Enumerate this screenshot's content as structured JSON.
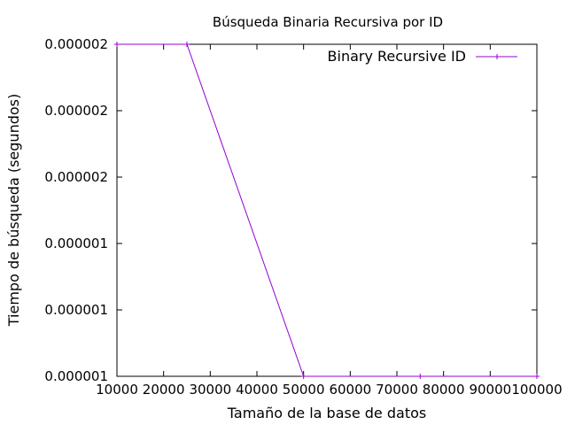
{
  "chart_data": {
    "type": "line",
    "title": "Búsqueda Binaria Recursiva por ID",
    "xlabel": "Tamaño de la base de datos",
    "ylabel": "Tiempo de búsqueda (segundos)",
    "xlim": [
      10000,
      100000
    ],
    "x_ticks": [
      10000,
      20000,
      30000,
      40000,
      50000,
      60000,
      70000,
      80000,
      90000,
      100000
    ],
    "x_tick_labels": [
      "10000",
      "20000",
      "30000",
      "40000",
      "50000",
      "60000",
      "70000",
      "80000",
      "90000",
      "100000"
    ],
    "ylim": [
      1e-06,
      2e-06
    ],
    "y_ticks": [
      1e-06,
      1.2e-06,
      1.4e-06,
      1.6e-06,
      1.8e-06,
      2e-06
    ],
    "y_tick_labels": [
      "0.000001",
      "0.000001",
      "0.000001",
      "0.000002",
      "0.000002",
      "0.000002"
    ],
    "grid": false,
    "legend": "top-right",
    "series": [
      {
        "name": "Binary Recursive ID",
        "color": "#9400d3",
        "marker": "plus",
        "x": [
          10000,
          25000,
          50000,
          75000,
          100000
        ],
        "y": [
          2e-06,
          2e-06,
          1e-06,
          1e-06,
          1e-06
        ]
      }
    ]
  }
}
